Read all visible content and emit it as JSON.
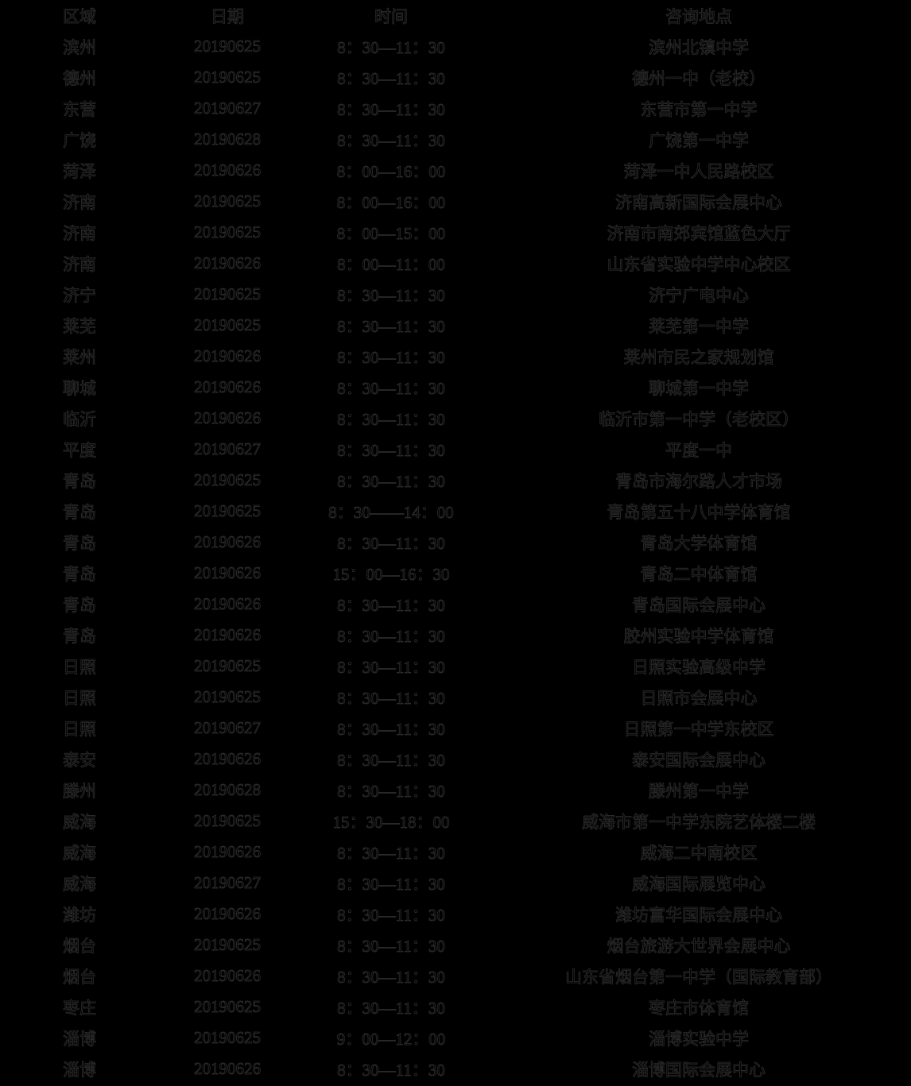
{
  "colors": {
    "background": "#000000",
    "text_fill": "#000000",
    "text_outline": "#2e2e2e"
  },
  "table": {
    "headers": [
      "区域",
      "日期",
      "时间",
      "咨询地点"
    ],
    "rows": [
      {
        "region": "滨州",
        "date": "20190625",
        "time": "8：30—11：30",
        "location": "滨州北镇中学"
      },
      {
        "region": "德州",
        "date": "20190625",
        "time": "8：30—11：30",
        "location": "德州一中（老校）"
      },
      {
        "region": "东营",
        "date": "20190627",
        "time": "8：30—11：30",
        "location": "东营市第一中学"
      },
      {
        "region": "广饶",
        "date": "20190628",
        "time": "8：30—11：30",
        "location": "广饶第一中学"
      },
      {
        "region": "菏泽",
        "date": "20190626",
        "time": "8：00—16：00",
        "location": "菏泽一中人民路校区"
      },
      {
        "region": "济南",
        "date": "20190625",
        "time": "8：00—16：00",
        "location": "济南高新国际会展中心"
      },
      {
        "region": "济南",
        "date": "20190625",
        "time": "8：00—15：00",
        "location": "济南市南郊宾馆蓝色大厅"
      },
      {
        "region": "济南",
        "date": "20190626",
        "time": "8：00—11：00",
        "location": "山东省实验中学中心校区"
      },
      {
        "region": "济宁",
        "date": "20190625",
        "time": "8：30—11：30",
        "location": "济宁广电中心"
      },
      {
        "region": "莱芜",
        "date": "20190625",
        "time": "8：30—11：30",
        "location": "莱芜第一中学"
      },
      {
        "region": "莱州",
        "date": "20190626",
        "time": "8：30—11：30",
        "location": "莱州市民之家规划馆"
      },
      {
        "region": "聊城",
        "date": "20190626",
        "time": "8：30—11：30",
        "location": "聊城第一中学"
      },
      {
        "region": "临沂",
        "date": "20190626",
        "time": "8：30—11：30",
        "location": "临沂市第一中学（老校区）"
      },
      {
        "region": "平度",
        "date": "20190627",
        "time": "8：30—11：30",
        "location": "平度一中"
      },
      {
        "region": "青岛",
        "date": "20190625",
        "time": "8：30—11：30",
        "location": "青岛市海尔路人才市场"
      },
      {
        "region": "青岛",
        "date": "20190625",
        "time": "8：30——14：00",
        "location": "青岛第五十八中学体育馆"
      },
      {
        "region": "青岛",
        "date": "20190626",
        "time": "8：30—11：30",
        "location": "青岛大学体育馆"
      },
      {
        "region": "青岛",
        "date": "20190626",
        "time": "15：00—16：30",
        "location": "青岛二中体育馆"
      },
      {
        "region": "青岛",
        "date": "20190626",
        "time": "8：30—11：30",
        "location": "青岛国际会展中心"
      },
      {
        "region": "青岛",
        "date": "20190626",
        "time": "8：30—11：30",
        "location": "胶州实验中学体育馆"
      },
      {
        "region": "日照",
        "date": "20190625",
        "time": "8：30—11：30",
        "location": "日照实验高级中学"
      },
      {
        "region": "日照",
        "date": "20190625",
        "time": "8：30—11：30",
        "location": "日照市会展中心"
      },
      {
        "region": "日照",
        "date": "20190627",
        "time": "8：30—11：30",
        "location": "日照第一中学东校区"
      },
      {
        "region": "泰安",
        "date": "20190626",
        "time": "8：30—11：30",
        "location": "泰安国际会展中心"
      },
      {
        "region": "滕州",
        "date": "20190628",
        "time": "8：30—11：30",
        "location": "滕州第一中学"
      },
      {
        "region": "威海",
        "date": "20190625",
        "time": "15：30—18：00",
        "location": "威海市第一中学东院艺体楼二楼"
      },
      {
        "region": "威海",
        "date": "20190626",
        "time": "8：30—11：30",
        "location": "威海二中南校区"
      },
      {
        "region": "威海",
        "date": "20190627",
        "time": "8：30—11：30",
        "location": "威海国际展览中心"
      },
      {
        "region": "潍坊",
        "date": "20190626",
        "time": "8：30—11：30",
        "location": "潍坊富华国际会展中心"
      },
      {
        "region": "烟台",
        "date": "20190625",
        "time": "8：30—11：30",
        "location": "烟台旅游大世界会展中心"
      },
      {
        "region": "烟台",
        "date": "20190626",
        "time": "8：30—11：30",
        "location": "山东省烟台第一中学（国际教育部）"
      },
      {
        "region": "枣庄",
        "date": "20190625",
        "time": "8：30—11：30",
        "location": "枣庄市体育馆"
      },
      {
        "region": "淄博",
        "date": "20190625",
        "time": "9：00—12：00",
        "location": "淄博实验中学"
      },
      {
        "region": "淄博",
        "date": "20190626",
        "time": "8：30—11：30",
        "location": "淄博国际会展中心"
      }
    ]
  }
}
